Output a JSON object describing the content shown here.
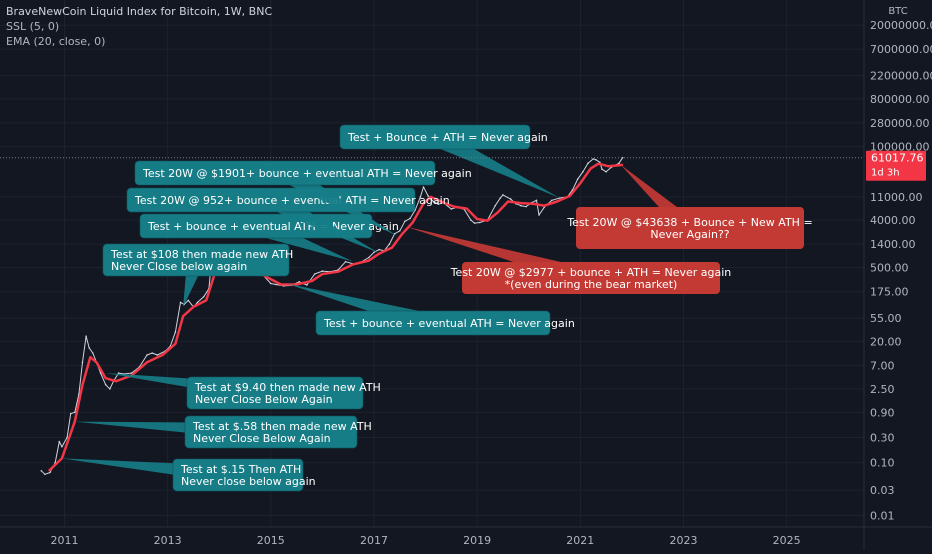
{
  "legend": {
    "title": "BraveNewCoin Liquid Index for Bitcoin, 1W, BNC",
    "ind1": "SSL (5, 0)",
    "ind2": "EMA (20, close, 0)"
  },
  "price_axis": {
    "currency": "BTC",
    "ticks": [
      {
        "label": "20000000.00",
        "value": 20000000
      },
      {
        "label": "7000000.00",
        "value": 7000000
      },
      {
        "label": "2200000.00",
        "value": 2200000
      },
      {
        "label": "800000.00",
        "value": 800000
      },
      {
        "label": "280000.00",
        "value": 280000
      },
      {
        "label": "100000.00",
        "value": 100000
      },
      {
        "label": "11000.00",
        "value": 11000
      },
      {
        "label": "4000.00",
        "value": 4000
      },
      {
        "label": "1400.00",
        "value": 1400
      },
      {
        "label": "500.00",
        "value": 500
      },
      {
        "label": "175.00",
        "value": 175
      },
      {
        "label": "55.00",
        "value": 55
      },
      {
        "label": "20.00",
        "value": 20
      },
      {
        "label": "7.00",
        "value": 7
      },
      {
        "label": "2.50",
        "value": 2.5
      },
      {
        "label": "0.90",
        "value": 0.9
      },
      {
        "label": "0.30",
        "value": 0.3
      },
      {
        "label": "0.10",
        "value": 0.1
      },
      {
        "label": "0.03",
        "value": 0.03
      },
      {
        "label": "0.01",
        "value": 0.01
      }
    ],
    "last_price": {
      "label": "61017.76",
      "value": 61017.76,
      "countdown": "1d 3h",
      "color": "#f23645"
    }
  },
  "time_axis": {
    "ticks": [
      {
        "label": "2011",
        "value": 2011.0
      },
      {
        "label": "2013",
        "value": 2013.0
      },
      {
        "label": "2015",
        "value": 2015.0
      },
      {
        "label": "2017",
        "value": 2017.0
      },
      {
        "label": "2019",
        "value": 2019.0
      },
      {
        "label": "2021",
        "value": 2021.0
      },
      {
        "label": "2023",
        "value": 2023.0
      },
      {
        "label": "2025",
        "value": 2025.0
      }
    ]
  },
  "chart_data": {
    "type": "line",
    "scale": "log",
    "xlabel": "",
    "ylabel": "",
    "grid": true,
    "ylim": [
      0.006,
      60000000
    ],
    "xlim": [
      2009.75,
      2026.5
    ],
    "series": [
      {
        "color": "#d1d4dc",
        "points": [
          [
            2010.55,
            0.07
          ],
          [
            2010.62,
            0.06
          ],
          [
            2010.72,
            0.065
          ],
          [
            2010.82,
            0.1
          ],
          [
            2010.9,
            0.25
          ],
          [
            2010.95,
            0.2
          ],
          [
            2011.05,
            0.3
          ],
          [
            2011.12,
            0.85
          ],
          [
            2011.2,
            0.9
          ],
          [
            2011.28,
            2.0
          ],
          [
            2011.35,
            8
          ],
          [
            2011.42,
            25
          ],
          [
            2011.48,
            15
          ],
          [
            2011.55,
            12
          ],
          [
            2011.62,
            8
          ],
          [
            2011.7,
            5
          ],
          [
            2011.8,
            3
          ],
          [
            2011.88,
            2.5
          ],
          [
            2011.95,
            3.5
          ],
          [
            2012.05,
            5
          ],
          [
            2012.15,
            4.8
          ],
          [
            2012.3,
            5
          ],
          [
            2012.45,
            6.5
          ],
          [
            2012.6,
            11
          ],
          [
            2012.7,
            12
          ],
          [
            2012.8,
            11
          ],
          [
            2012.95,
            13
          ],
          [
            2013.05,
            16
          ],
          [
            2013.15,
            30
          ],
          [
            2013.25,
            110
          ],
          [
            2013.32,
            100
          ],
          [
            2013.4,
            120
          ],
          [
            2013.5,
            90
          ],
          [
            2013.58,
            110
          ],
          [
            2013.7,
            140
          ],
          [
            2013.8,
            200
          ],
          [
            2013.87,
            1000
          ],
          [
            2013.93,
            750
          ],
          [
            2014.0,
            850
          ],
          [
            2014.1,
            650
          ],
          [
            2014.2,
            480
          ],
          [
            2014.3,
            450
          ],
          [
            2014.45,
            600
          ],
          [
            2014.55,
            600
          ],
          [
            2014.7,
            400
          ],
          [
            2014.85,
            360
          ],
          [
            2015.0,
            250
          ],
          [
            2015.1,
            240
          ],
          [
            2015.25,
            225
          ],
          [
            2015.4,
            230
          ],
          [
            2015.55,
            270
          ],
          [
            2015.7,
            235
          ],
          [
            2015.85,
            380
          ],
          [
            2016.0,
            430
          ],
          [
            2016.15,
            420
          ],
          [
            2016.3,
            450
          ],
          [
            2016.45,
            650
          ],
          [
            2016.6,
            590
          ],
          [
            2016.75,
            640
          ],
          [
            2016.9,
            780
          ],
          [
            2017.0,
            980
          ],
          [
            2017.1,
            1100
          ],
          [
            2017.2,
            1050
          ],
          [
            2017.3,
            1400
          ],
          [
            2017.4,
            2200
          ],
          [
            2017.5,
            2500
          ],
          [
            2017.6,
            3800
          ],
          [
            2017.7,
            4300
          ],
          [
            2017.8,
            6200
          ],
          [
            2017.9,
            11000
          ],
          [
            2017.96,
            17000
          ],
          [
            2018.05,
            11500
          ],
          [
            2018.15,
            9000
          ],
          [
            2018.25,
            8000
          ],
          [
            2018.35,
            8500
          ],
          [
            2018.5,
            6500
          ],
          [
            2018.6,
            7000
          ],
          [
            2018.75,
            6400
          ],
          [
            2018.88,
            4000
          ],
          [
            2018.95,
            3500
          ],
          [
            2019.05,
            3600
          ],
          [
            2019.2,
            4000
          ],
          [
            2019.35,
            7500
          ],
          [
            2019.45,
            10500
          ],
          [
            2019.5,
            12000
          ],
          [
            2019.65,
            10000
          ],
          [
            2019.75,
            8200
          ],
          [
            2019.85,
            7500
          ],
          [
            2019.95,
            7200
          ],
          [
            2020.05,
            8500
          ],
          [
            2020.15,
            9500
          ],
          [
            2020.2,
            5000
          ],
          [
            2020.3,
            7000
          ],
          [
            2020.45,
            9500
          ],
          [
            2020.6,
            10500
          ],
          [
            2020.75,
            11000
          ],
          [
            2020.85,
            15000
          ],
          [
            2020.95,
            24000
          ],
          [
            2021.05,
            33000
          ],
          [
            2021.15,
            48000
          ],
          [
            2021.25,
            58000
          ],
          [
            2021.3,
            56000
          ],
          [
            2021.38,
            50000
          ],
          [
            2021.42,
            37000
          ],
          [
            2021.5,
            33000
          ],
          [
            2021.6,
            40000
          ],
          [
            2021.7,
            45000
          ],
          [
            2021.75,
            48000
          ],
          [
            2021.82,
            61017.76
          ]
        ]
      },
      {
        "color": "#f23645",
        "points": [
          [
            2010.7,
            0.07
          ],
          [
            2010.95,
            0.12
          ],
          [
            2011.2,
            0.6
          ],
          [
            2011.35,
            3
          ],
          [
            2011.5,
            10
          ],
          [
            2011.62,
            8
          ],
          [
            2011.8,
            4
          ],
          [
            2012.0,
            3.5
          ],
          [
            2012.3,
            4.5
          ],
          [
            2012.6,
            8
          ],
          [
            2012.9,
            11
          ],
          [
            2013.15,
            18
          ],
          [
            2013.3,
            60
          ],
          [
            2013.5,
            90
          ],
          [
            2013.75,
            120
          ],
          [
            2013.95,
            500
          ],
          [
            2014.15,
            600
          ],
          [
            2014.4,
            500
          ],
          [
            2014.7,
            450
          ],
          [
            2014.95,
            320
          ],
          [
            2015.2,
            240
          ],
          [
            2015.5,
            240
          ],
          [
            2015.8,
            280
          ],
          [
            2016.0,
            380
          ],
          [
            2016.3,
            420
          ],
          [
            2016.6,
            580
          ],
          [
            2016.9,
            680
          ],
          [
            2017.1,
            920
          ],
          [
            2017.35,
            1200
          ],
          [
            2017.55,
            2200
          ],
          [
            2017.75,
            3600
          ],
          [
            2017.95,
            8000
          ],
          [
            2018.1,
            11000
          ],
          [
            2018.3,
            9000
          ],
          [
            2018.55,
            7200
          ],
          [
            2018.8,
            6600
          ],
          [
            2019.0,
            4200
          ],
          [
            2019.2,
            3900
          ],
          [
            2019.4,
            5600
          ],
          [
            2019.6,
            9000
          ],
          [
            2019.85,
            8400
          ],
          [
            2020.1,
            8100
          ],
          [
            2020.3,
            7500
          ],
          [
            2020.55,
            9000
          ],
          [
            2020.8,
            11500
          ],
          [
            2021.0,
            20000
          ],
          [
            2021.2,
            38000
          ],
          [
            2021.35,
            47000
          ],
          [
            2021.55,
            42000
          ],
          [
            2021.75,
            44000
          ],
          [
            2021.82,
            45000
          ]
        ]
      }
    ],
    "annotations": [
      {
        "lines": [
          "Test at $.15 Then  ATH",
          "Never close below again"
        ],
        "color": "#167d87",
        "target": [
          2010.95,
          0.12
        ]
      },
      {
        "lines": [
          "Test at $.58 then made new ATH",
          "Never Close Below Again"
        ],
        "color": "#167d87",
        "target": [
          2011.2,
          0.6
        ]
      },
      {
        "lines": [
          "Test at $9.40 then made new ATH",
          "Never Close Below Again"
        ],
        "color": "#167d87",
        "target": [
          2011.8,
          5
        ]
      },
      {
        "lines": [
          "Test at $108 then made new ATH",
          "Never Close below again"
        ],
        "color": "#167d87",
        "target": [
          2013.3,
          90
        ]
      },
      {
        "lines": [
          "Test + bounce + eventual ATH = Never again"
        ],
        "color": "#167d87",
        "target": [
          2016.6,
          650
        ]
      },
      {
        "lines": [
          "Test 20W @ 952+ bounce + eventual ATH = Never again"
        ],
        "color": "#167d87",
        "target": [
          2017.1,
          950
        ]
      },
      {
        "lines": [
          "Test 20W @ $1901+ bounce + eventual ATH = Never again"
        ],
        "color": "#167d87",
        "target": [
          2017.45,
          2000
        ]
      },
      {
        "lines": [
          "Test + Bounce + ATH = Never again"
        ],
        "color": "#167d87",
        "target": [
          2020.6,
          10500
        ]
      },
      {
        "lines": [
          "Test + bounce + eventual ATH = Never again"
        ],
        "color": "#167d87",
        "target": [
          2015.3,
          250
        ]
      },
      {
        "lines": [
          "Test 20W @ $2977 + bounce + ATH = Never again",
          "*(even during the bear market)"
        ],
        "color": "#c33a34",
        "target": [
          2017.62,
          3000
        ]
      },
      {
        "lines": [
          "Test 20W @ $43638 + Bounce + New ATH =",
          "Never Again??"
        ],
        "color": "#c33a34",
        "target": [
          2021.78,
          45000
        ]
      }
    ]
  }
}
